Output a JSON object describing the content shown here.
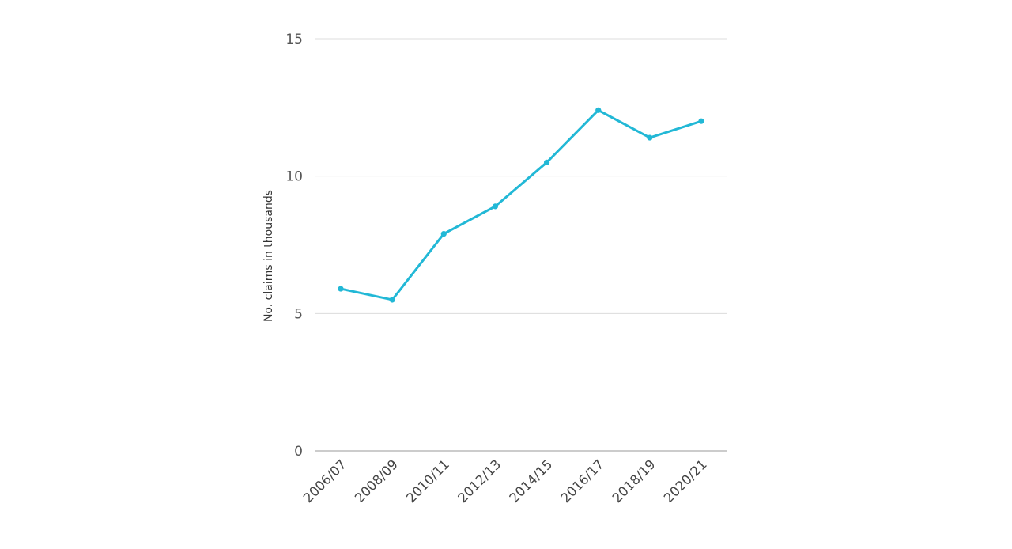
{
  "chart_data": {
    "type": "line",
    "title": "",
    "xlabel": "",
    "ylabel": "No. claims in thousands",
    "categories": [
      "2006/07",
      "2008/09",
      "2010/11",
      "2012/13",
      "2014/15",
      "2016/17",
      "2018/19",
      "2020/21"
    ],
    "series": [
      {
        "values": [
          5.9,
          5.5,
          7.9,
          8.9,
          10.5,
          12.4,
          11.4,
          12.0
        ],
        "color": "#22b8d6"
      }
    ],
    "ylim": [
      0,
      15
    ],
    "yticks": [
      "0",
      "5",
      "10",
      "15"
    ],
    "grid": true,
    "legend": "none"
  }
}
